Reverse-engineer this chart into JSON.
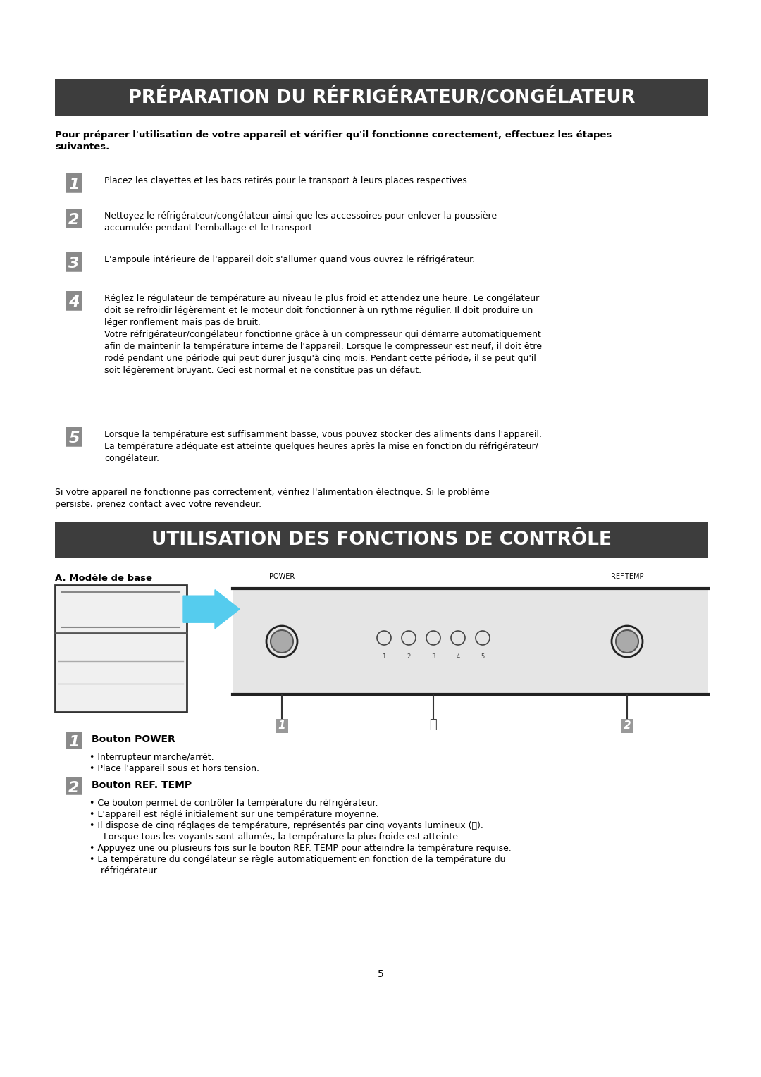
{
  "title1": "PRÉPARATION DU RÉFRIGÉRATEUR/CONGÉLATEUR",
  "title2": "UTILISATION DES FONCTIONS DE CONTRÔLE",
  "title1_bg": "#3d3d3d",
  "title2_bg": "#3d3d3d",
  "title_text_color": "#ffffff",
  "body_text_color": "#000000",
  "page_bg": "#ffffff",
  "intro_bold": "Pour préparer l'utilisation de votre appareil et vérifier qu'il fonctionne corectement, effectuez les étapes\nsuivantes.",
  "step1_text": "Placez les clayettes et les bacs retirés pour le transport à leurs places respectives.",
  "step2_text": "Nettoyez le réfrigérateur/congélateur ainsi que les accessoires pour enlever la poussière\naccumulée pendant l'emballage et le transport.",
  "step3_text": "L'ampoule intérieure de l'appareil doit s'allumer quand vous ouvrez le réfrigérateur.",
  "step4_text": "Réglez le régulateur de température au niveau le plus froid et attendez une heure. Le congélateur\ndoit se refroidir légèrement et le moteur doit fonctionner à un rythme régulier. Il doit produire un\nléger ronflement mais pas de bruit.\nVotre réfrigérateur/congélateur fonctionne grâce à un compresseur qui démarre automatiquement\nafin de maintenir la température interne de l'appareil. Lorsque le compresseur est neuf, il doit être\nrodé pendant une période qui peut durer jusqu'à cinq mois. Pendant cette période, il se peut qu'il\nsoit légèrement bruyant. Ceci est normal et ne constitue pas un défaut.",
  "step5_text": "Lorsque la température est suffisamment basse, vous pouvez stocker des aliments dans l'appareil.\nLa température adéquate est atteinte quelques heures après la mise en fonction du réfrigérateur/\ncongélateur.",
  "note_text": "Si votre appareil ne fonctionne pas correctement, vérifiez l'alimentation électrique. Si le problème\npersiste, prenez contact avec votre revendeur.",
  "section2_label": "A. Modèle de base",
  "button1_title": "Bouton POWER",
  "button1_b1": "Interrupteur marche/arrêt.",
  "button1_b2": "Place l'appareil sous et hors tension.",
  "button2_title": "Bouton REF. TEMP",
  "button2_b1": "Ce bouton permet de contrôler la température du réfrigérateur.",
  "button2_b2": "L'appareil est réglé initialement sur une température moyenne.",
  "button2_b3": "Il dispose de cinq réglages de température, représentés par cinq voyants lumineux (ⓘ).",
  "button2_b3b": "   Lorsque tous les voyants sont allumés, la température la plus froide est atteinte.",
  "button2_b4": "Appuyez une ou plusieurs fois sur le bouton REF. TEMP pour atteindre la température requise.",
  "button2_b5": "La température du congélateur se règle automatiquement en fonction de la température du",
  "button2_b5b": "  réfrigérateur.",
  "page_number": "5"
}
